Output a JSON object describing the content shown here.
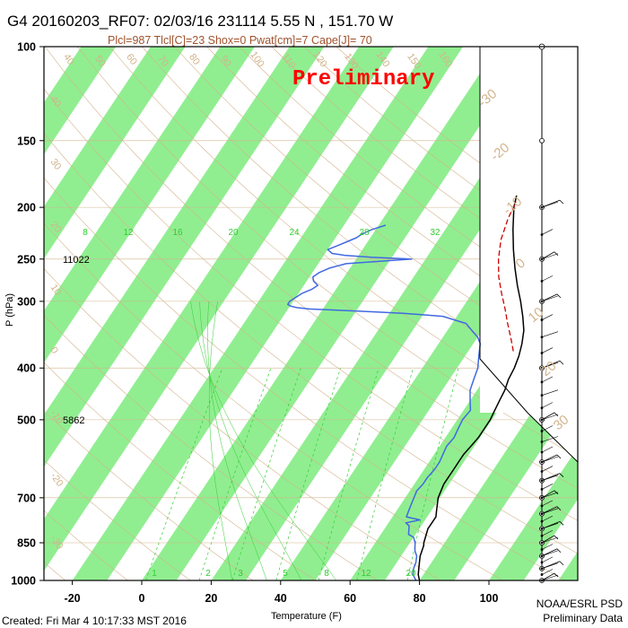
{
  "title": "G4 20160203_RF07: 02/03/16 231114   5.55 N , 151.70 W",
  "subtitle": "Plcl=987 Tlcl[C]=23 Shox=0 Pwat[cm]=7 Cape[J]= 70",
  "watermark": "Preliminary",
  "footer_left": "Created: Fri Mar  4 10:17:33 MST 2016",
  "footer_right_line1": "NOAA/ESRL PSD",
  "footer_right_line2": "Preliminary Data",
  "colors": {
    "isotherm_band": "#90ee90",
    "temperature": "#000000",
    "dewpoint": "#4169e1",
    "parcel": "#cc0000",
    "adiabat": "#d2b48c",
    "mixing_ratio": "#32cd32"
  },
  "chart_data": {
    "type": "skew-t sounding",
    "xlabel": "Temperature (F)",
    "ylabel": "P (hPa)",
    "xlim": [
      -30,
      110
    ],
    "ylim": [
      1000,
      100
    ],
    "x_ticks": [
      "-20",
      "0",
      "20",
      "40",
      "60",
      "80",
      "100"
    ],
    "y_ticks": [
      "100",
      "150",
      "200",
      "250",
      "300",
      "400",
      "500",
      "700",
      "850",
      "1000"
    ],
    "height_labels": [
      {
        "p": 250,
        "label": "11022"
      },
      {
        "p": 500,
        "label": "5862"
      }
    ],
    "mixing_ratio_labels": [
      "8",
      "12",
      "16",
      "20",
      "24",
      "28",
      "32"
    ],
    "mixing_ratio_bottom_labels": [
      "1",
      "2",
      "3",
      "5",
      "8",
      "12",
      "20"
    ],
    "theta_labels_top": [
      "40",
      "50",
      "60",
      "70",
      "80",
      "90",
      "100",
      "110",
      "120",
      "130",
      "140",
      "150",
      "160"
    ],
    "theta_labels_left": [
      "40",
      "30",
      "20",
      "10",
      "0",
      "-10",
      "-20",
      "-30"
    ],
    "thetae_labels_right": [
      "-30",
      "-20",
      "-10",
      "0",
      "10",
      "20",
      "30"
    ],
    "temperature_series": {
      "name": "",
      "p": [
        1000,
        975,
        950,
        925,
        900,
        880,
        860,
        850,
        800,
        780,
        760,
        740,
        720,
        700,
        680,
        660,
        640,
        620,
        600,
        580,
        560,
        540,
        520,
        500,
        480,
        460,
        440,
        420,
        400,
        380,
        360,
        340,
        320,
        300,
        280,
        260,
        240,
        220,
        200,
        190
      ],
      "t": [
        80,
        78.5,
        77.5,
        76.5,
        75.5,
        75,
        74.5,
        74,
        72.5,
        72.5,
        72.5,
        71.5,
        70.5,
        69.5,
        69,
        68.5,
        68.5,
        68.5,
        68.5,
        68.5,
        69,
        69.5,
        69.5,
        69.5,
        69,
        68.5,
        68,
        67,
        66.5,
        65.5,
        64,
        62,
        59,
        55.5,
        51.5,
        47.5,
        43.5,
        39.5,
        35.5,
        34
      ]
    },
    "dewpoint_series": {
      "name": "",
      "p": [
        1000,
        975,
        950,
        925,
        900,
        880,
        860,
        850,
        830,
        820,
        800,
        790,
        780,
        770,
        760,
        740,
        720,
        700,
        680,
        660,
        640,
        620,
        600,
        580,
        560,
        540,
        520,
        500,
        480,
        460,
        440,
        420,
        400,
        380,
        360,
        350,
        340,
        330,
        325,
        320,
        318,
        316,
        314,
        312,
        310,
        308,
        306,
        304,
        300,
        295,
        290,
        285,
        280,
        275,
        270,
        265,
        260,
        255,
        250,
        248,
        246,
        244,
        240,
        236,
        232,
        228,
        224,
        220,
        216
      ],
      "t": [
        79,
        77,
        76,
        75.5,
        74.5,
        73,
        72,
        71.5,
        70,
        68,
        67,
        66.5,
        65,
        68.5,
        64,
        63.5,
        63,
        62.5,
        62,
        62.5,
        62.5,
        63,
        63,
        62.5,
        62,
        62.5,
        62,
        61.5,
        62,
        60,
        58,
        57,
        56,
        54,
        52,
        50,
        47,
        44,
        40,
        36,
        30,
        24,
        16,
        6,
        -4,
        -8,
        -10,
        -11,
        -11,
        -10,
        -9,
        -7,
        -6,
        -8,
        -9,
        -8,
        -6,
        -2,
        16,
        4,
        -4,
        -8,
        -10,
        -8,
        -6,
        -4,
        -3,
        -1,
        2
      ]
    },
    "parcel_series": {
      "name": "",
      "p": [
        372,
        350,
        330,
        310,
        290,
        270,
        250,
        230,
        210,
        195
      ],
      "t": [
        63,
        59.5,
        56,
        52.5,
        48.5,
        44.5,
        41,
        38,
        36,
        35
      ]
    },
    "wind_barb_levels": [
      100,
      150,
      200,
      250,
      300,
      400,
      500,
      600,
      650,
      700,
      750,
      800,
      850,
      900,
      950,
      1000
    ]
  }
}
